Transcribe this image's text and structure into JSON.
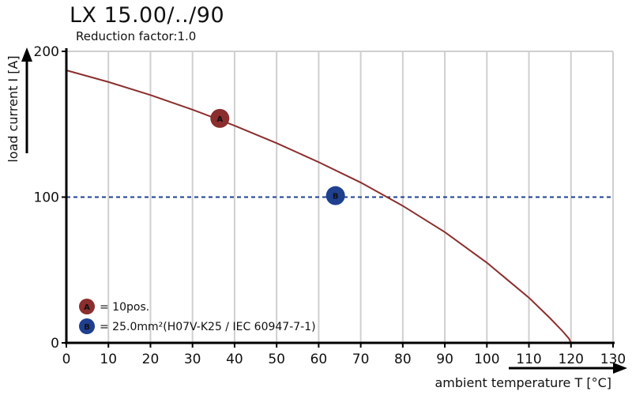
{
  "chart_data": {
    "type": "line",
    "title": "LX 15.00/../90",
    "subtitle": "Reduction factor:1.0",
    "xlabel": "ambient temperature T [°C]",
    "ylabel": "load current I [A]",
    "xlim": [
      0,
      130
    ],
    "ylim": [
      0,
      200
    ],
    "xticks": [
      0,
      10,
      20,
      30,
      40,
      50,
      60,
      70,
      80,
      90,
      100,
      110,
      120,
      130
    ],
    "yticks": [
      0,
      100,
      200
    ],
    "grid": true,
    "series": [
      {
        "name": "A = 10pos.",
        "color": "#8b2e2e",
        "style": "solid",
        "x": [
          0,
          10,
          20,
          30,
          40,
          50,
          60,
          70,
          80,
          90,
          100,
          105,
          110,
          115,
          118,
          119.5,
          120
        ],
        "y": [
          187,
          179,
          170,
          160,
          149,
          137,
          124,
          110,
          94,
          76,
          55,
          43,
          31,
          17,
          8,
          3,
          0
        ]
      },
      {
        "name": "B = 25.0mm²(H07V-K25 / IEC 60947-7-1)",
        "color": "#1f3f8f",
        "style": "dashed",
        "x": [
          0,
          130
        ],
        "y": [
          100,
          100
        ]
      }
    ],
    "markers": [
      {
        "label": "A",
        "x": 36.5,
        "y": 154,
        "color": "#8b2e2e"
      },
      {
        "label": "B",
        "x": 64,
        "y": 101,
        "color": "#1f3f8f"
      }
    ],
    "legend": [
      {
        "marker": "A",
        "text": "= 10pos.",
        "color": "#8b2e2e"
      },
      {
        "marker": "B",
        "text": "= 25.0mm²(H07V-K25 / IEC 60947-7-1)",
        "color": "#1f3f8f"
      }
    ],
    "legend_position": "bottom-left"
  }
}
